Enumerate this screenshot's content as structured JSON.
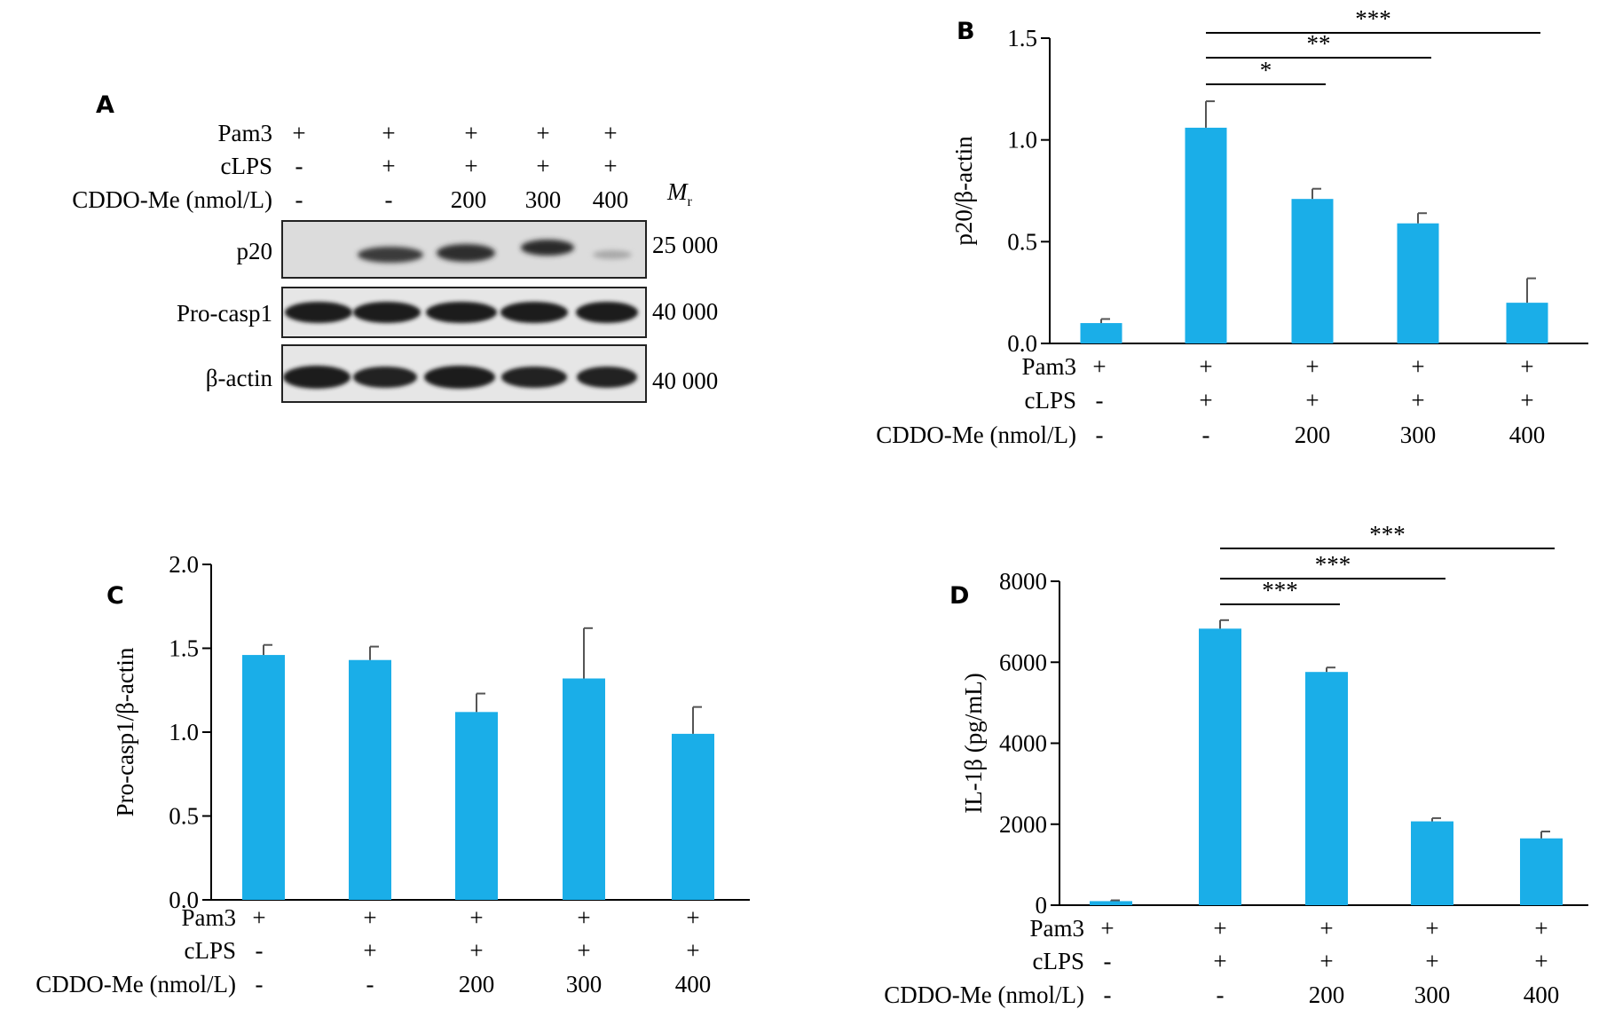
{
  "panels": {
    "A": {
      "letter": "A",
      "conditions": [
        {
          "label": "Pam3",
          "values": [
            "+",
            "+",
            "+",
            "+",
            "+"
          ]
        },
        {
          "label": "cLPS",
          "values": [
            "-",
            "+",
            "+",
            "+",
            "+"
          ]
        },
        {
          "label": "CDDO-Me (nmol/L)",
          "values": [
            "-",
            "-",
            "200",
            "300",
            "400"
          ]
        }
      ],
      "mr_label": "M",
      "mr_sub": "r",
      "blots": [
        {
          "label": "p20",
          "mr": "25 000"
        },
        {
          "label": "Pro-casp1",
          "mr": "40 000"
        },
        {
          "label": "β-actin",
          "mr": "40 000"
        }
      ]
    }
  },
  "chart_data": [
    {
      "panel": "B",
      "type": "bar",
      "ylabel": "p20/β-actin",
      "ylim": [
        0,
        1.5
      ],
      "yticks": [
        "0.0",
        "0.5",
        "1.0",
        "1.5"
      ],
      "ytick_values": [
        0,
        0.5,
        1.0,
        1.5
      ],
      "values": [
        0.1,
        1.06,
        0.71,
        0.59,
        0.2
      ],
      "errors": [
        0.02,
        0.13,
        0.05,
        0.05,
        0.12
      ],
      "color": "#1AAEE8",
      "conditions": [
        {
          "label": "Pam3",
          "values": [
            "+",
            "+",
            "+",
            "+",
            "+"
          ]
        },
        {
          "label": "cLPS",
          "values": [
            "-",
            "+",
            "+",
            "+",
            "+"
          ]
        },
        {
          "label": "CDDO-Me (nmol/L)",
          "values": [
            "-",
            "-",
            "200",
            "300",
            "400"
          ]
        }
      ],
      "significance": [
        {
          "from": 1,
          "to": 2,
          "label": "*"
        },
        {
          "from": 1,
          "to": 3,
          "label": "**"
        },
        {
          "from": 1,
          "to": 4,
          "label": "***"
        }
      ]
    },
    {
      "panel": "C",
      "type": "bar",
      "ylabel": "Pro-casp1/β-actin",
      "ylim": [
        0,
        2.0
      ],
      "yticks": [
        "0.0",
        "0.5",
        "1.0",
        "1.5",
        "2.0"
      ],
      "ytick_values": [
        0,
        0.5,
        1.0,
        1.5,
        2.0
      ],
      "values": [
        1.46,
        1.43,
        1.12,
        1.32,
        0.99
      ],
      "errors": [
        0.06,
        0.08,
        0.11,
        0.3,
        0.16
      ],
      "color": "#1AAEE8",
      "conditions": [
        {
          "label": "Pam3",
          "values": [
            "+",
            "+",
            "+",
            "+",
            "+"
          ]
        },
        {
          "label": "cLPS",
          "values": [
            "-",
            "+",
            "+",
            "+",
            "+"
          ]
        },
        {
          "label": "CDDO-Me (nmol/L)",
          "values": [
            "-",
            "-",
            "200",
            "300",
            "400"
          ]
        }
      ],
      "significance": []
    },
    {
      "panel": "D",
      "type": "bar",
      "ylabel": "IL-1β (pg/mL)",
      "ylim": [
        0,
        8000
      ],
      "yticks": [
        "0",
        "2000",
        "4000",
        "6000",
        "8000"
      ],
      "ytick_values": [
        0,
        2000,
        4000,
        6000,
        8000
      ],
      "values": [
        100,
        6830,
        5760,
        2070,
        1650
      ],
      "errors": [
        20,
        210,
        110,
        80,
        170
      ],
      "color": "#1AAEE8",
      "conditions": [
        {
          "label": "Pam3",
          "values": [
            "+",
            "+",
            "+",
            "+",
            "+"
          ]
        },
        {
          "label": "cLPS",
          "values": [
            "-",
            "+",
            "+",
            "+",
            "+"
          ]
        },
        {
          "label": "CDDO-Me (nmol/L)",
          "values": [
            "-",
            "-",
            "200",
            "300",
            "400"
          ]
        }
      ],
      "significance": [
        {
          "from": 1,
          "to": 2,
          "label": "***"
        },
        {
          "from": 1,
          "to": 3,
          "label": "***"
        },
        {
          "from": 1,
          "to": 4,
          "label": "***"
        }
      ]
    }
  ]
}
